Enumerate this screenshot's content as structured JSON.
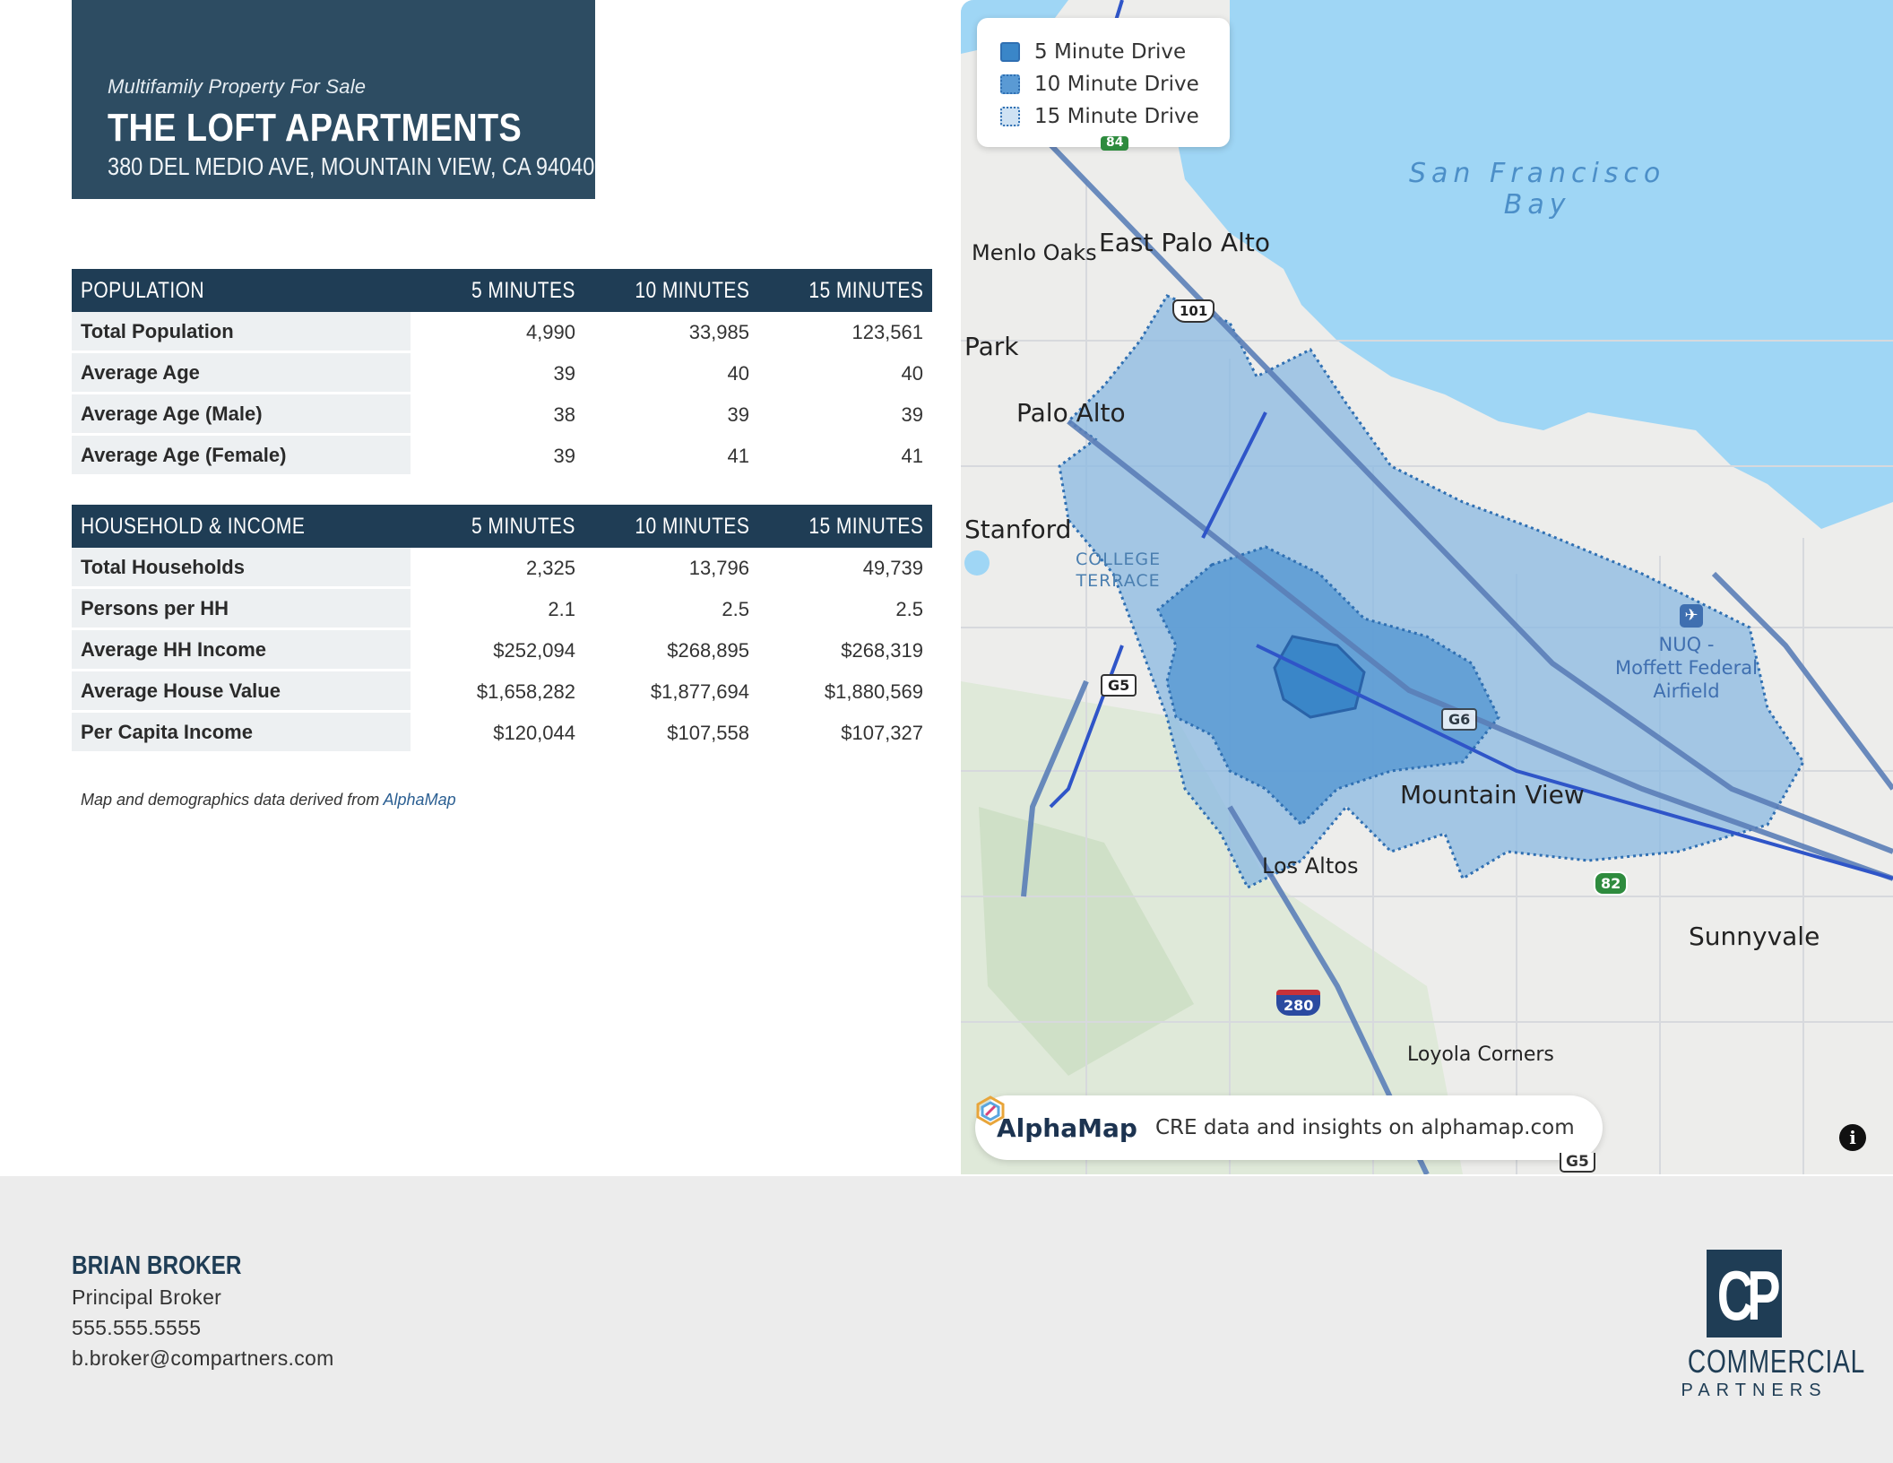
{
  "header": {
    "kicker": "Multifamily Property For Sale",
    "property_name": "THE LOFT APARTMENTS",
    "address": "380 DEL MEDIO AVE, MOUNTAIN VIEW, CA 94040"
  },
  "population_table": {
    "columns": [
      "POPULATION",
      "5 MINUTES",
      "10 MINUTES",
      "15 MINUTES"
    ],
    "rows": [
      {
        "label": "Total Population",
        "values": [
          "4,990",
          "33,985",
          "123,561"
        ]
      },
      {
        "label": "Average Age",
        "values": [
          "39",
          "40",
          "40"
        ]
      },
      {
        "label": "Average Age (Male)",
        "values": [
          "38",
          "39",
          "39"
        ]
      },
      {
        "label": "Average Age (Female)",
        "values": [
          "39",
          "41",
          "41"
        ]
      }
    ]
  },
  "household_table": {
    "columns": [
      "HOUSEHOLD & INCOME",
      "5 MINUTES",
      "10 MINUTES",
      "15 MINUTES"
    ],
    "rows": [
      {
        "label": "Total Households",
        "values": [
          "2,325",
          "13,796",
          "49,739"
        ]
      },
      {
        "label": "Persons per HH",
        "values": [
          "2.1",
          "2.5",
          "2.5"
        ]
      },
      {
        "label": "Average HH Income",
        "values": [
          "$252,094",
          "$268,895",
          "$268,319"
        ]
      },
      {
        "label": "Average House Value",
        "values": [
          "$1,658,282",
          "$1,877,694",
          "$1,880,569"
        ]
      },
      {
        "label": "Per Capita Income",
        "values": [
          "$120,044",
          "$107,558",
          "$107,327"
        ]
      }
    ]
  },
  "source_note": {
    "prefix": "Map and demographics data derived from ",
    "link_text": "AlphaMap"
  },
  "map": {
    "legend": [
      "5 Minute Drive",
      "10 Minute Drive",
      "15 Minute Drive"
    ],
    "places": {
      "menlo_oaks": "Menlo Oaks",
      "east_palo_alto": "East Palo Alto",
      "park": "Park",
      "palo_alto": "Palo Alto",
      "stanford": "Stanford",
      "college_terrace": "COLLEGE\nTERRACE",
      "bay_line1": "San Francisco",
      "bay_line2": "Bay",
      "airfield": "NUQ -\nMoffett Federal\nAirfield",
      "mountain_view": "Mountain View",
      "los_altos": "Los Altos",
      "sunnyvale": "Sunnyvale",
      "loyola_corners": "Loyola Corners"
    },
    "shields": {
      "us101": "101",
      "g5": "G5",
      "g6": "G6",
      "i280": "280",
      "sr82": "82",
      "sr84": "84"
    },
    "alphamap_name": "AlphaMap",
    "alphamap_tagline": "CRE data and insights on alphamap.com",
    "info_icon": "i",
    "colors": {
      "water": "#9fd6f5",
      "drive_5": "#3a86c8",
      "drive_10": "#5a9ad4",
      "drive_15": "#8ab8e2"
    }
  },
  "agent": {
    "name": "BRIAN BROKER",
    "title": "Principal Broker",
    "phone": "555.555.5555",
    "email": "b.broker@compartners.com"
  },
  "brand": {
    "mark": "CP",
    "word": "COMMERCIAL",
    "sub": "PARTNERS"
  }
}
